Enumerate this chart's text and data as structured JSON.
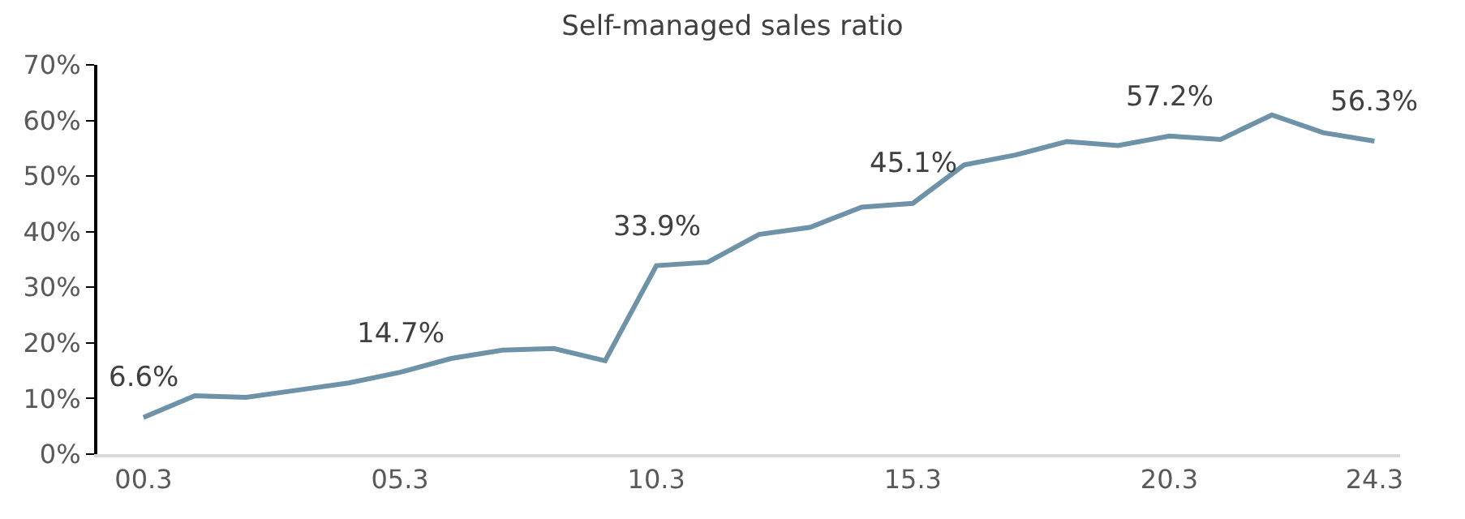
{
  "chart_data": {
    "type": "line",
    "title": "Self-managed sales ratio",
    "categories": [
      "00.3",
      null,
      null,
      null,
      null,
      "05.3",
      null,
      null,
      null,
      null,
      "10.3",
      null,
      null,
      null,
      null,
      "15.3",
      null,
      null,
      null,
      null,
      "20.3",
      null,
      null,
      null,
      "24.3"
    ],
    "values": [
      6.6,
      10.5,
      10.2,
      11.5,
      12.8,
      14.7,
      17.2,
      18.7,
      19.0,
      16.8,
      33.9,
      34.5,
      39.5,
      40.8,
      44.4,
      45.1,
      52.0,
      53.8,
      56.2,
      55.5,
      57.2,
      56.6,
      61.0,
      57.8,
      56.3
    ],
    "value_labels": [
      "6.6%",
      null,
      null,
      null,
      null,
      "14.7%",
      null,
      null,
      null,
      null,
      "33.9%",
      null,
      null,
      null,
      null,
      "45.1%",
      null,
      null,
      null,
      null,
      "57.2%",
      null,
      null,
      null,
      "56.3%"
    ],
    "color": "#6e93a8",
    "ylim": [
      0,
      70
    ],
    "yticks": [
      {
        "value": 0,
        "label": "0%"
      },
      {
        "value": 10,
        "label": "10%"
      },
      {
        "value": 20,
        "label": "20%"
      },
      {
        "value": 30,
        "label": "30%"
      },
      {
        "value": 40,
        "label": "40%"
      },
      {
        "value": 50,
        "label": "50%"
      },
      {
        "value": 60,
        "label": "60%"
      },
      {
        "value": 70,
        "label": "70%"
      }
    ],
    "legend": false,
    "marker": "none",
    "line_style": "solid"
  }
}
